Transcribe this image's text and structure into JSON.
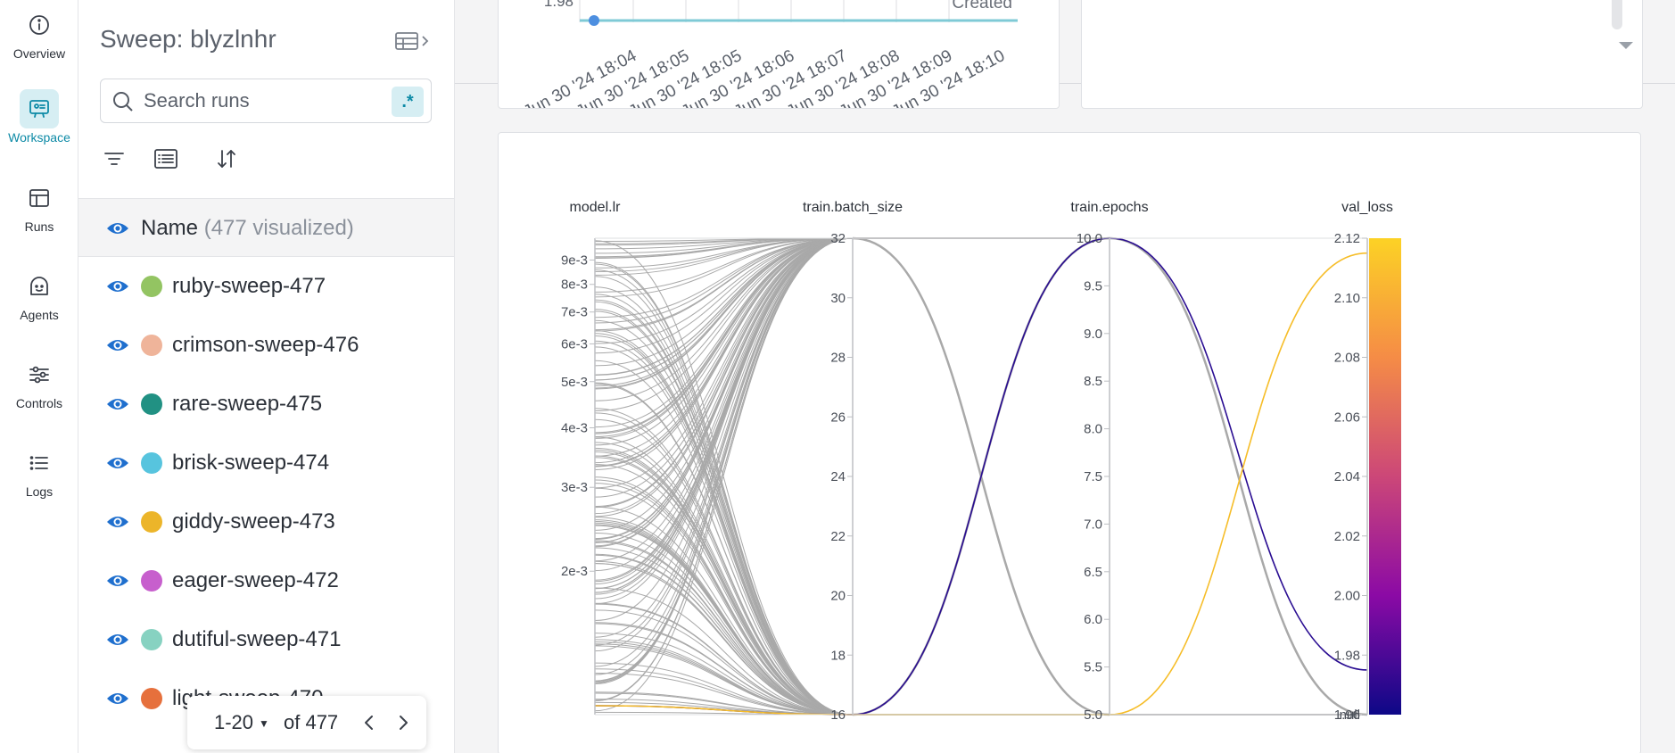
{
  "nav": {
    "items": [
      {
        "label": "Overview",
        "icon": "info-icon"
      },
      {
        "label": "Workspace",
        "icon": "workspace-icon",
        "active": true
      },
      {
        "label": "Runs",
        "icon": "table-icon"
      },
      {
        "label": "Agents",
        "icon": "agent-icon"
      },
      {
        "label": "Controls",
        "icon": "sliders-icon"
      },
      {
        "label": "Logs",
        "icon": "list-icon"
      }
    ]
  },
  "sidebar": {
    "title": "Sweep: blyzlnhr",
    "search_placeholder": "Search runs",
    "regex_label": ".*",
    "header_name": "Name",
    "header_count": "(477 visualized)",
    "runs": [
      {
        "name": "ruby-sweep-477",
        "color": "#93c462"
      },
      {
        "name": "crimson-sweep-476",
        "color": "#efb49a"
      },
      {
        "name": "rare-sweep-475",
        "color": "#219183"
      },
      {
        "name": "brisk-sweep-474",
        "color": "#57c4de"
      },
      {
        "name": "giddy-sweep-473",
        "color": "#ecb52a"
      },
      {
        "name": "eager-sweep-472",
        "color": "#c75fcd"
      },
      {
        "name": "dutiful-sweep-471",
        "color": "#87d2c1"
      },
      {
        "name": "light-sweep-470",
        "color": "#e6703c"
      }
    ],
    "pager": {
      "range": "1-20",
      "of": "of 477"
    }
  },
  "line_panel": {
    "y_tick": "1.98",
    "legend_label": "Created",
    "x_ticks": [
      "Jun 30 '24 18:04",
      "Jun 30 '24 18:05",
      "Jun 30 '24 18:05",
      "Jun 30 '24 18:06",
      "Jun 30 '24 18:07",
      "Jun 30 '24 18:08",
      "Jun 30 '24 18:09",
      "Jun 30 '24 18:10"
    ]
  },
  "chart_data": {
    "type": "parallel_coordinates",
    "axes": [
      {
        "name": "model.lr",
        "ticks": [
          "9e-3",
          "8e-3",
          "7e-3",
          "6e-3",
          "5e-3",
          "4e-3",
          "3e-3",
          "2e-3"
        ],
        "tick_values": [
          0.009,
          0.008,
          0.007,
          0.006,
          0.005,
          0.004,
          0.003,
          0.002
        ],
        "scale": "log",
        "range": [
          0.001,
          0.01
        ]
      },
      {
        "name": "train.batch_size",
        "ticks": [
          "32",
          "30",
          "28",
          "26",
          "24",
          "22",
          "20",
          "18",
          "16"
        ],
        "range": [
          16,
          32
        ]
      },
      {
        "name": "train.epochs",
        "ticks": [
          "10.0",
          "9.5",
          "9.0",
          "8.5",
          "8.0",
          "7.5",
          "7.0",
          "6.5",
          "6.0",
          "5.5",
          "5.0"
        ],
        "range": [
          5,
          10
        ]
      },
      {
        "name": "val_loss",
        "ticks": [
          "2.12",
          "2.10",
          "2.08",
          "2.06",
          "2.04",
          "2.02",
          "2.00",
          "1.98",
          "1.96",
          "null"
        ],
        "range": [
          1.96,
          2.12
        ],
        "colorscale": [
          "#fcd225",
          "#f58c46",
          "#cc4778",
          "#8b0aa5",
          "#0d0887"
        ]
      }
    ],
    "highlighted": [
      {
        "train.batch_size": 16,
        "train.epochs": 10.0,
        "val_loss": 1.975,
        "color": "#2a0d92"
      },
      {
        "train.batch_size": 16,
        "train.epochs": 5.0,
        "val_loss": 2.115,
        "color": "#f6bd28"
      }
    ],
    "background_color": "#a9a9a9"
  }
}
